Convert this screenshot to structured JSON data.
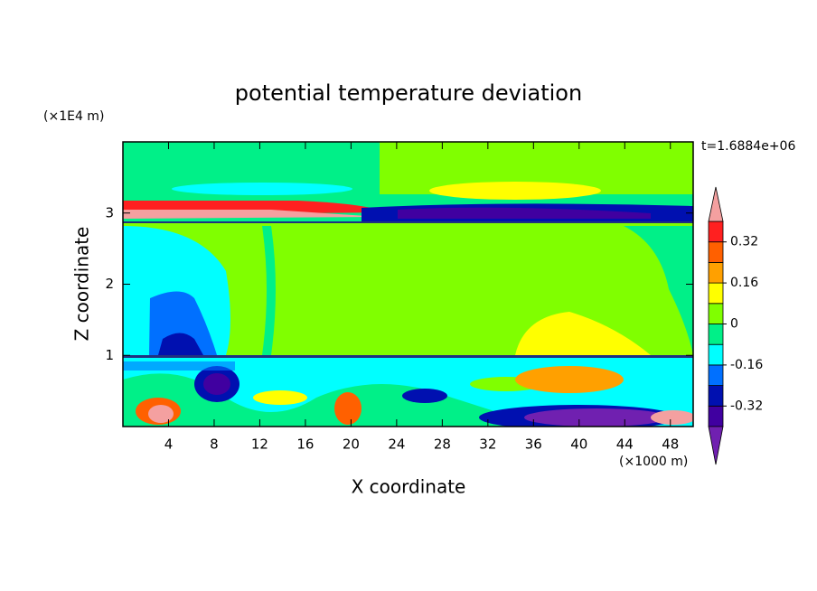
{
  "chart_data": {
    "type": "contour",
    "title": "potential temperature deviation",
    "x_label": "X coordinate",
    "y_label": "Z coordinate",
    "x_unit": "(×1000 m)",
    "y_unit": "(×1E4 m)",
    "annotation": "t=1.6884e+06",
    "xlim": [
      0,
      50
    ],
    "xticks": [
      4,
      8,
      12,
      16,
      20,
      24,
      28,
      32,
      36,
      40,
      44,
      48
    ],
    "ylim": [
      0,
      4
    ],
    "yticks": [
      1,
      2,
      3
    ],
    "levels": [
      -0.4,
      -0.32,
      -0.24,
      -0.16,
      -0.08,
      0,
      0.08,
      0.16,
      0.24,
      0.32,
      0.4
    ],
    "colors": [
      "#7020b0",
      "#4000a0",
      "#0010b0",
      "#0070ff",
      "#00ffff",
      "#00f088",
      "#80ff00",
      "#ffff00",
      "#ffa000",
      "#ff6000",
      "#ff2020",
      "#f4a0a0"
    ],
    "colorbar_ticks": [
      -0.32,
      -0.16,
      0,
      0.16,
      0.32
    ]
  }
}
